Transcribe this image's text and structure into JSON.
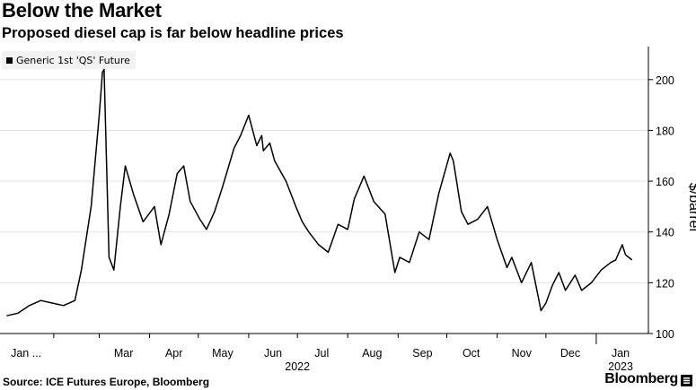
{
  "header": {
    "title": "Below the Market",
    "subtitle": "Proposed diesel cap is far below headline prices"
  },
  "footer": {
    "source": "Source: ICE Futures Europe, Bloomberg",
    "brand": "Bloomberg"
  },
  "chart_data": {
    "type": "line",
    "ylabel": "$/barrel",
    "ylim": [
      100,
      213
    ],
    "yticks": [
      100,
      120,
      140,
      160,
      180,
      200
    ],
    "y_axis_position": "right",
    "grid": true,
    "legend_position": "top-left",
    "x_tick_labels": [
      "Jan ...",
      "Mar",
      "Apr",
      "May",
      "Jun",
      "Jul",
      "Aug",
      "Sep",
      "Oct",
      "Nov",
      "Dec",
      "Jan"
    ],
    "x_year_labels": [
      "2022",
      "2023"
    ],
    "series": [
      {
        "name": "Generic 1st 'QS' Future",
        "color": "#000000",
        "x": [
          "2022-01-03",
          "2022-01-10",
          "2022-01-17",
          "2022-01-24",
          "2022-01-31",
          "2022-02-07",
          "2022-02-14",
          "2022-02-18",
          "2022-02-24",
          "2022-03-01",
          "2022-03-03",
          "2022-03-04",
          "2022-03-07",
          "2022-03-10",
          "2022-03-14",
          "2022-03-17",
          "2022-03-22",
          "2022-03-28",
          "2022-04-04",
          "2022-04-08",
          "2022-04-13",
          "2022-04-18",
          "2022-04-22",
          "2022-04-26",
          "2022-05-02",
          "2022-05-06",
          "2022-05-11",
          "2022-05-16",
          "2022-05-23",
          "2022-05-27",
          "2022-06-01",
          "2022-06-06",
          "2022-06-09",
          "2022-06-10",
          "2022-06-14",
          "2022-06-17",
          "2022-06-24",
          "2022-06-30",
          "2022-07-04",
          "2022-07-08",
          "2022-07-14",
          "2022-07-20",
          "2022-07-26",
          "2022-08-01",
          "2022-08-05",
          "2022-08-11",
          "2022-08-17",
          "2022-08-24",
          "2022-08-30",
          "2022-09-02",
          "2022-09-08",
          "2022-09-14",
          "2022-09-20",
          "2022-09-26",
          "2022-10-03",
          "2022-10-05",
          "2022-10-10",
          "2022-10-14",
          "2022-10-20",
          "2022-10-26",
          "2022-11-01",
          "2022-11-07",
          "2022-11-10",
          "2022-11-16",
          "2022-11-22",
          "2022-11-28",
          "2022-12-01",
          "2022-12-05",
          "2022-12-09",
          "2022-12-13",
          "2022-12-19",
          "2022-12-23",
          "2022-12-29",
          "2023-01-04",
          "2023-01-10",
          "2023-01-13",
          "2023-01-17",
          "2023-01-19",
          "2023-01-23"
        ],
        "values": [
          107,
          108,
          111,
          113,
          112,
          111,
          113,
          125,
          150,
          186,
          203,
          204,
          130,
          125,
          150,
          166,
          155,
          144,
          150,
          135,
          147,
          163,
          166,
          152,
          145,
          141,
          148,
          158,
          173,
          178,
          186,
          174,
          178,
          172,
          175,
          168,
          160,
          150,
          144,
          140,
          135,
          132,
          143,
          141,
          153,
          162,
          152,
          147,
          124,
          130,
          128,
          140,
          137,
          155,
          171,
          168,
          148,
          143,
          145,
          150,
          137,
          126,
          130,
          120,
          128,
          109,
          112,
          119,
          124,
          117,
          123,
          117,
          120,
          125,
          128,
          129,
          135,
          131,
          129
        ]
      }
    ]
  }
}
